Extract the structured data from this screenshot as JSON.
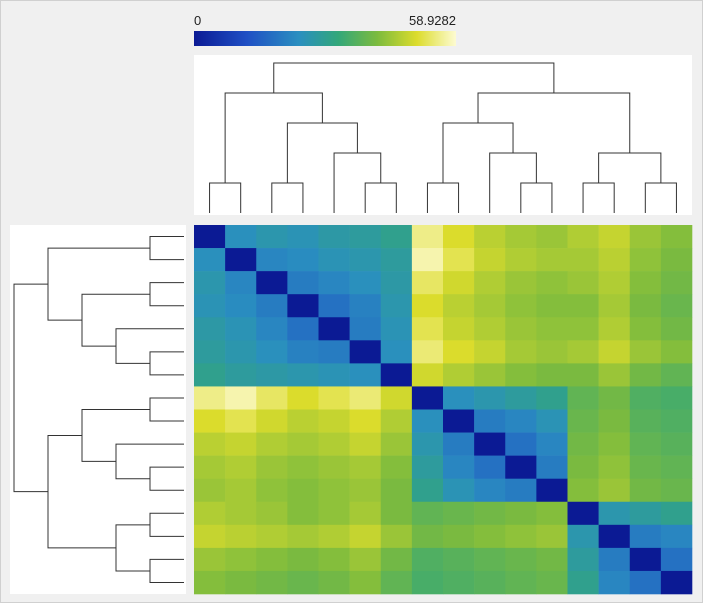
{
  "colorbar": {
    "min": 0,
    "max": 58.9282
  },
  "heatmap": {
    "values": [
      [
        0,
        24,
        26,
        25,
        27,
        28,
        30,
        55,
        50,
        47,
        45,
        44,
        46,
        48,
        44,
        42
      ],
      [
        24,
        0,
        22,
        23,
        25,
        26,
        28,
        57,
        52,
        48,
        46,
        45,
        45,
        47,
        43,
        41
      ],
      [
        26,
        22,
        0,
        20,
        22,
        24,
        27,
        53,
        49,
        46,
        44,
        43,
        44,
        46,
        42,
        40
      ],
      [
        25,
        23,
        20,
        0,
        18,
        21,
        26,
        50,
        47,
        45,
        43,
        42,
        42,
        45,
        41,
        39
      ],
      [
        27,
        25,
        22,
        18,
        0,
        20,
        25,
        52,
        48,
        46,
        44,
        43,
        43,
        46,
        42,
        40
      ],
      [
        28,
        26,
        24,
        21,
        20,
        0,
        24,
        54,
        50,
        48,
        45,
        44,
        45,
        48,
        44,
        42
      ],
      [
        30,
        28,
        27,
        26,
        25,
        24,
        0,
        49,
        46,
        44,
        42,
        41,
        41,
        44,
        40,
        38
      ],
      [
        55,
        57,
        53,
        50,
        52,
        54,
        49,
        0,
        24,
        26,
        28,
        30,
        38,
        40,
        36,
        35
      ],
      [
        50,
        52,
        49,
        47,
        48,
        50,
        46,
        24,
        0,
        20,
        22,
        25,
        39,
        41,
        37,
        36
      ],
      [
        47,
        48,
        46,
        45,
        46,
        48,
        44,
        26,
        20,
        0,
        18,
        22,
        40,
        42,
        38,
        37
      ],
      [
        45,
        46,
        44,
        43,
        44,
        45,
        42,
        28,
        22,
        18,
        0,
        20,
        41,
        43,
        39,
        38
      ],
      [
        44,
        45,
        43,
        42,
        43,
        44,
        41,
        30,
        25,
        22,
        20,
        0,
        42,
        44,
        40,
        39
      ],
      [
        46,
        45,
        44,
        42,
        43,
        45,
        41,
        38,
        39,
        40,
        41,
        42,
        0,
        26,
        28,
        30
      ],
      [
        48,
        47,
        46,
        45,
        46,
        48,
        44,
        40,
        41,
        42,
        43,
        44,
        26,
        0,
        20,
        22
      ],
      [
        44,
        43,
        42,
        41,
        42,
        44,
        40,
        36,
        37,
        38,
        39,
        40,
        28,
        20,
        0,
        18
      ],
      [
        42,
        41,
        40,
        39,
        40,
        42,
        38,
        35,
        36,
        37,
        38,
        39,
        30,
        22,
        18,
        0
      ]
    ]
  }
}
